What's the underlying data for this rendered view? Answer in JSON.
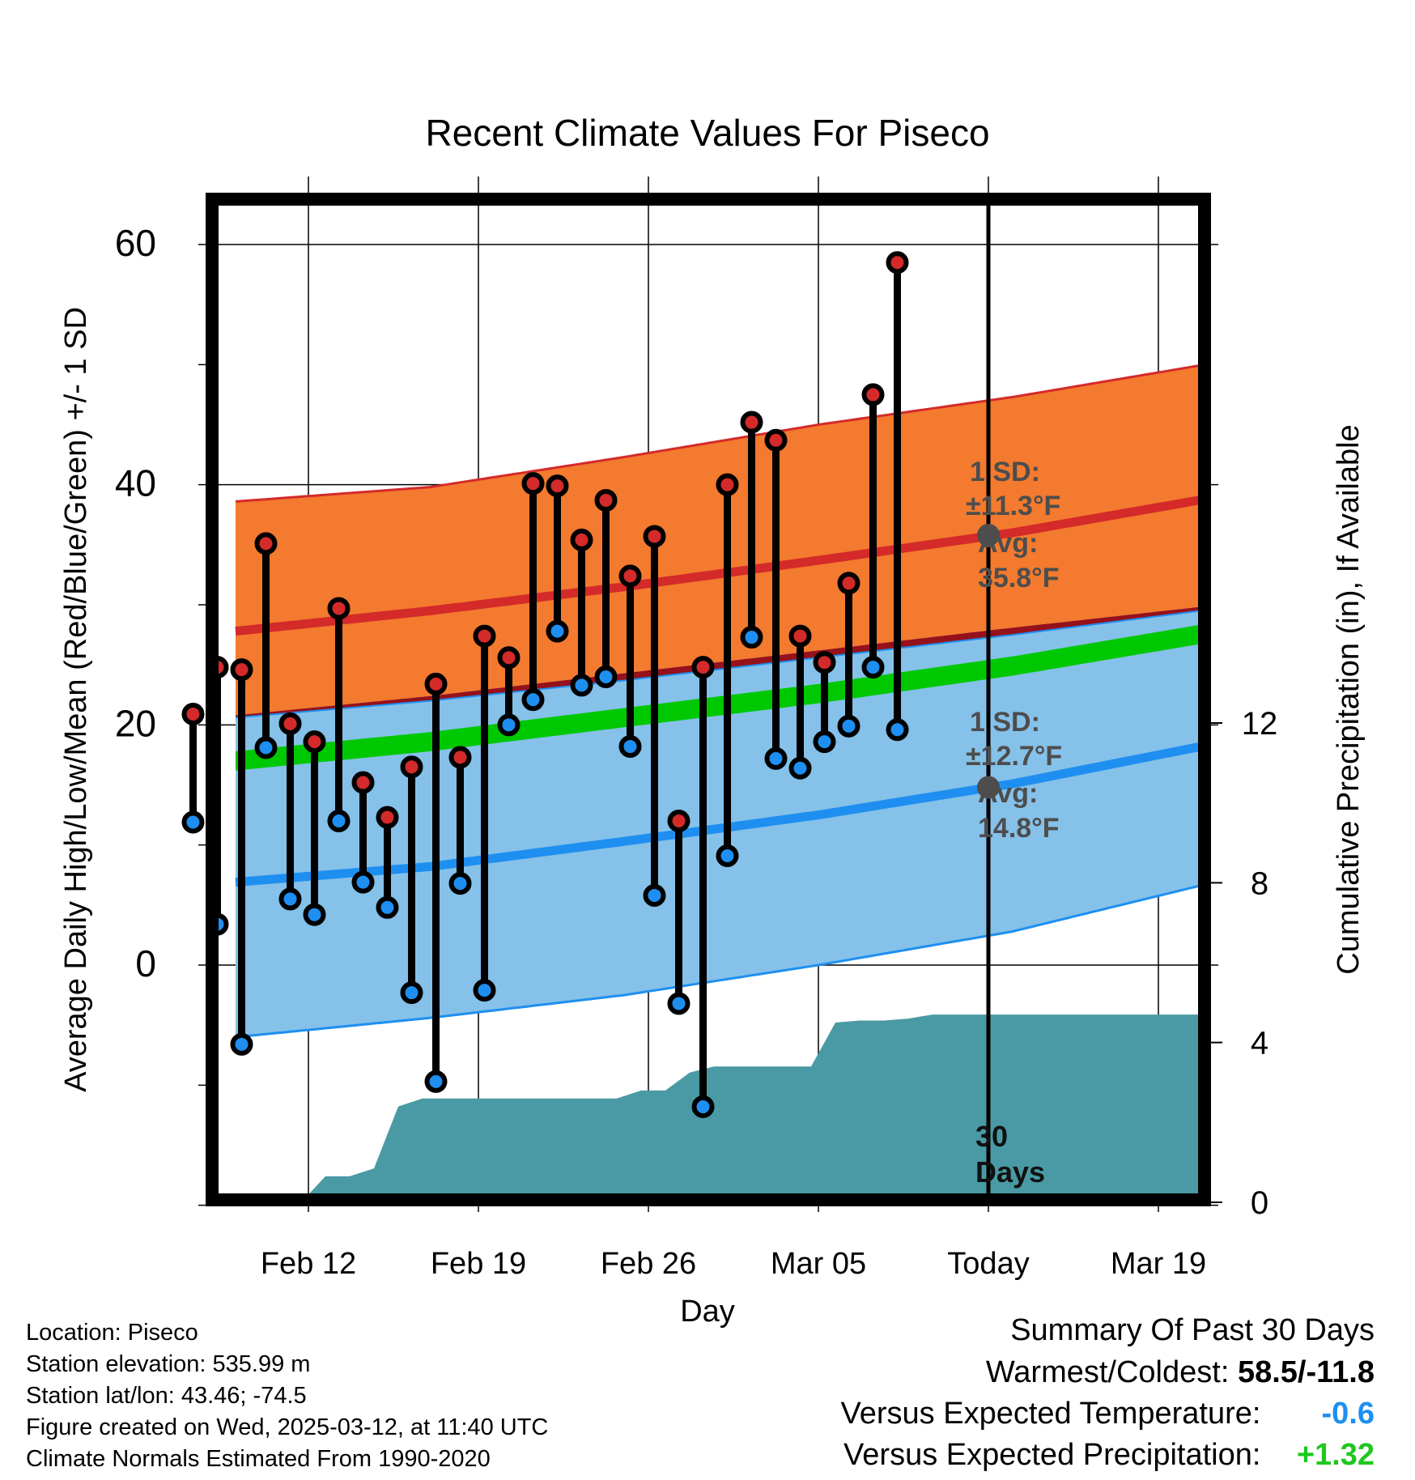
{
  "chart_data": {
    "type": "line",
    "title": "Recent Climate Values For Piseco",
    "xlabel": "Day",
    "ylabel_left": "Average Daily High/Low/Mean (Red/Blue/Green) +/- 1 SD",
    "ylabel_right": "Cumulative Precipitation (in), If Available",
    "x_tick_labels": [
      "Feb 12",
      "Feb 19",
      "Feb 26",
      "Mar 05",
      "Today",
      "Mar 19"
    ],
    "x_ticks_day_index": [
      3,
      10,
      17,
      24,
      31,
      38
    ],
    "y_left_ticks": [
      0,
      20,
      40,
      60
    ],
    "y_left_range": [
      -19,
      64
    ],
    "y_right_ticks": [
      0,
      4,
      8,
      12
    ],
    "y_right_range": [
      0,
      24
    ],
    "grid": true,
    "today_label": "30\nDays",
    "days_index_start": 0,
    "daily_high": [
      20.9,
      24.8,
      24.6,
      35.1,
      20.1,
      18.6,
      29.7,
      15.2,
      12.3,
      16.5,
      23.4,
      17.3,
      27.4,
      25.6,
      40.1,
      39.9,
      35.4,
      38.7,
      32.4,
      35.7,
      12.0,
      24.8,
      40.0,
      45.2,
      43.7,
      27.4,
      25.2,
      31.8,
      47.5,
      58.5
    ],
    "daily_low": [
      11.9,
      3.4,
      -6.6,
      18.1,
      5.5,
      4.2,
      12.0,
      6.9,
      4.8,
      -2.3,
      -9.7,
      6.8,
      -2.1,
      20.0,
      22.1,
      27.8,
      23.3,
      24.0,
      18.2,
      5.8,
      -3.2,
      -11.8,
      9.1,
      27.3,
      17.2,
      16.4,
      18.6,
      19.9,
      24.8,
      19.6
    ],
    "normal_high": {
      "day_index": [
        0,
        8,
        16,
        24,
        32,
        40.5
      ],
      "values": [
        27.8,
        29.5,
        31.5,
        33.7,
        36.0,
        39.0
      ]
    },
    "normal_high_sd_band": {
      "upper": [
        38.6,
        39.8,
        42.3,
        45.0,
        47.3,
        50.2
      ],
      "lower": [
        20.8,
        22.4,
        24.3,
        26.2,
        28.1,
        30.0
      ]
    },
    "normal_low": {
      "day_index": [
        0,
        8,
        16,
        24,
        32,
        40.5
      ],
      "values": [
        6.9,
        8.2,
        10.3,
        12.5,
        15.1,
        18.5
      ]
    },
    "normal_low_sd_band": {
      "upper": [
        20.6,
        22.0,
        23.7,
        25.6,
        27.5,
        29.7
      ],
      "lower": [
        -6.0,
        -4.4,
        -2.5,
        0.0,
        2.8,
        7.0
      ]
    },
    "normal_mean": {
      "values": [
        17.8,
        19.4,
        21.4,
        23.4,
        25.7,
        28.6
      ]
    },
    "cumulative_precip": {
      "day_index": [
        2.7,
        3.7,
        4.7,
        5.7,
        6.7,
        7.7,
        8.7,
        9.7,
        10.7,
        11.7,
        12.7,
        13.7,
        14.7,
        15.7,
        16.7,
        17.7,
        18.7,
        19.7,
        20.7,
        21.7,
        22.7,
        23.7,
        24.7,
        25.7,
        26.7,
        27.7,
        28.7,
        29.7,
        30.5,
        40.5
      ],
      "values": [
        0.0,
        0.65,
        0.65,
        0.85,
        2.4,
        2.6,
        2.6,
        2.6,
        2.6,
        2.6,
        2.6,
        2.6,
        2.6,
        2.6,
        2.8,
        2.8,
        3.25,
        3.4,
        3.4,
        3.4,
        3.4,
        3.4,
        4.5,
        4.55,
        4.55,
        4.6,
        4.7,
        4.7,
        4.7,
        4.7
      ]
    },
    "annotations": {
      "high_sd": "1 SD:",
      "high_sd_val": "±11.3°F",
      "high_avg": "Avg:",
      "high_avg_val": "35.8°F",
      "low_sd": "1 SD:",
      "low_sd_val": "±12.7°F",
      "low_avg": "Avg:",
      "low_avg_val": "14.8°F"
    },
    "colors": {
      "high_band": "#f37a2e",
      "high_line": "#d42a2a",
      "low_band": "#85c1e9",
      "low_line": "#1e8ff0",
      "mean_band": "#95111b",
      "mean_line": "#00c800",
      "precip": "#4a9aa5",
      "high_dot": "#d42a2a",
      "low_dot": "#1e8ff0"
    }
  },
  "footer": {
    "location": "Location: Piseco",
    "elevation": "Station elevation: 535.99 m",
    "latlon": "Station lat/lon: 43.46; -74.5",
    "created": "Figure created on Wed, 2025-03-12, at 11:40 UTC",
    "normals": "Climate Normals Estimated From 1990-2020"
  },
  "summary": {
    "title": "Summary Of Past 30 Days",
    "warm_cold_label": "Warmest/Coldest:",
    "warm_cold_value": "58.5/-11.8",
    "temp_label": "Versus Expected Temperature:",
    "temp_value": "-0.6",
    "temp_color": "#1e8ff0",
    "precip_label": "Versus Expected Precipitation:",
    "precip_value": "+1.32",
    "precip_color": "#1ec81e"
  }
}
